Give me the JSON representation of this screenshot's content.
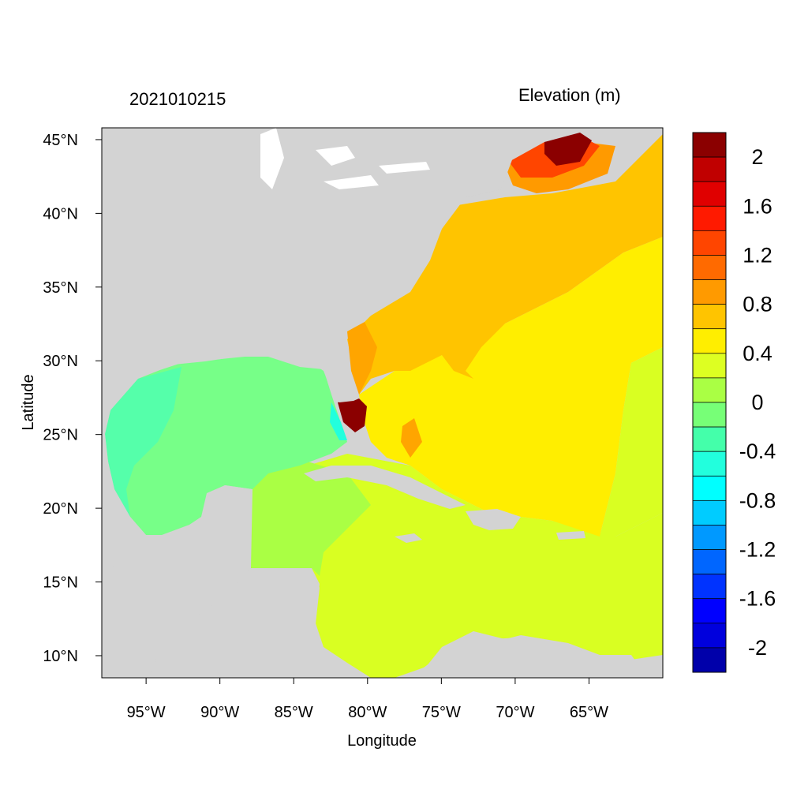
{
  "left_title": "2021010215",
  "right_title": "Elevation (m)",
  "x_axis": {
    "label": "Longitude",
    "ticks": [
      {
        "value": -95,
        "label": "95°W"
      },
      {
        "value": -90,
        "label": "90°W"
      },
      {
        "value": -85,
        "label": "85°W"
      },
      {
        "value": -80,
        "label": "80°W"
      },
      {
        "value": -75,
        "label": "75°W"
      },
      {
        "value": -70,
        "label": "70°W"
      },
      {
        "value": -65,
        "label": "65°W"
      }
    ],
    "range": [
      -98,
      -60
    ]
  },
  "y_axis": {
    "label": "Latitude",
    "ticks": [
      {
        "value": 10,
        "label": "10°N"
      },
      {
        "value": 15,
        "label": "15°N"
      },
      {
        "value": 20,
        "label": "20°N"
      },
      {
        "value": 25,
        "label": "25°N"
      },
      {
        "value": 30,
        "label": "30°N"
      },
      {
        "value": 35,
        "label": "35°N"
      },
      {
        "value": 40,
        "label": "40°N"
      },
      {
        "value": 45,
        "label": "45°N"
      }
    ],
    "range": [
      8.5,
      45.8
    ]
  },
  "colorbar": {
    "labels": [
      "2",
      "1.6",
      "1.2",
      "0.8",
      "0.4",
      "0",
      "-0.4",
      "-0.8",
      "-1.2",
      "-1.6",
      "-2"
    ],
    "colors": [
      "#8b0000",
      "#c00000",
      "#e00000",
      "#ff1a00",
      "#ff4500",
      "#ff6a00",
      "#ff9a00",
      "#ffc400",
      "#ffee00",
      "#ddff22",
      "#aaff44",
      "#77ff77",
      "#44ffaa",
      "#22ffdd",
      "#00ffff",
      "#00ccff",
      "#0099ff",
      "#0066ff",
      "#0033ff",
      "#0000ff",
      "#0000dd",
      "#0000aa"
    ]
  },
  "colors": {
    "land": "#d3d3d3",
    "background": "#ffffff"
  }
}
